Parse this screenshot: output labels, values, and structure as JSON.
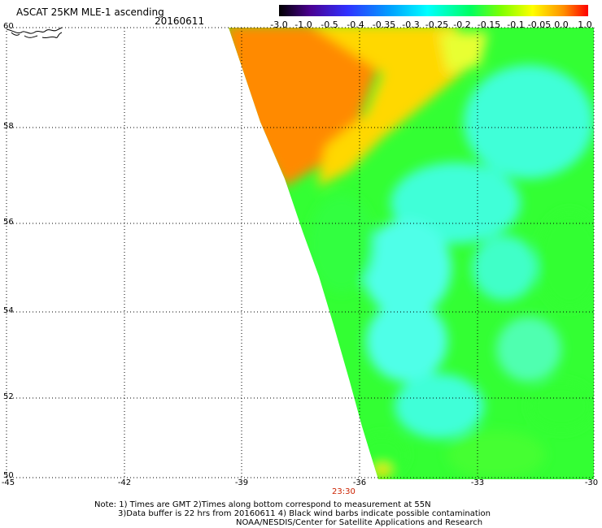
{
  "title": "ASCAT 25KM MLE-1 ascending",
  "date": "20160611",
  "colorbar": {
    "labels": [
      "-3.0",
      "-1.0",
      "-0.5",
      "-0.4",
      "-0.35",
      "-0.3",
      "-0.25",
      "-0.2",
      "-0.15",
      "-0.1",
      "-0.05",
      "0.0",
      "1.0"
    ],
    "colors": [
      "#2a0050",
      "#5a00b4",
      "#3a2cff",
      "#0070ff",
      "#00b0ff",
      "#00e8ff",
      "#00ffb0",
      "#00ff40",
      "#60ff00",
      "#c0ff00",
      "#ffee00",
      "#ff9000",
      "#ff2000"
    ]
  },
  "axes": {
    "lat_labels": [
      "60",
      "58",
      "56",
      "54",
      "52",
      "50"
    ],
    "lon_labels": [
      "-45",
      "-42",
      "-39",
      "-36",
      "-33",
      "-30"
    ]
  },
  "time_label": "23:30",
  "notes": [
    "Note: 1) Times are GMT 2)Times along bottom correspond to measurement at 55N",
    "3)Data buffer is 22 hrs from 20160611 4) Black wind barbs indicate possible contamination",
    "NOAA/NESDIS/Center for Satellite Applications and Research"
  ],
  "field_colors": {
    "orange": "#ff8000",
    "yellow": "#ffee00",
    "green": "#33ff33",
    "cyan": "#33ffee"
  }
}
